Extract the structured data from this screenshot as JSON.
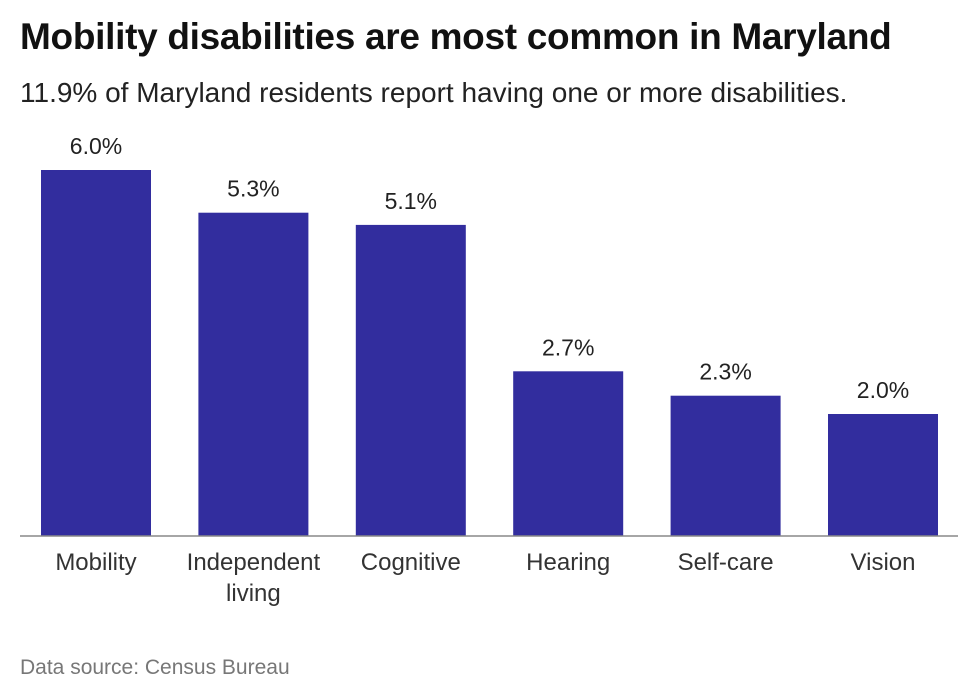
{
  "title": "Mobility disabilities are most common in Maryland",
  "subtitle": "11.9% of Maryland residents report having one or more disabilities.",
  "source": "Data source: Census Bureau",
  "colors": {
    "bar": "#322d9e",
    "axis": "#888888"
  },
  "chart_data": {
    "type": "bar",
    "categories": [
      [
        "Mobility"
      ],
      [
        "Independent",
        "living"
      ],
      [
        "Cognitive"
      ],
      [
        "Hearing"
      ],
      [
        "Self-care"
      ],
      [
        "Vision"
      ]
    ],
    "values": [
      6.0,
      5.3,
      5.1,
      2.7,
      2.3,
      2.0
    ],
    "value_labels": [
      "6.0%",
      "5.3%",
      "5.1%",
      "2.7%",
      "2.3%",
      "2.0%"
    ],
    "unit": "%",
    "ylim": [
      0,
      6.0
    ],
    "grid": false,
    "legend": "none"
  }
}
